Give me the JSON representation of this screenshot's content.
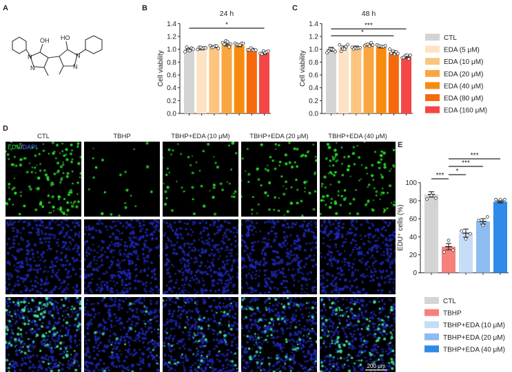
{
  "panel_labels": {
    "a": "A",
    "b": "B",
    "c": "C",
    "d": "D",
    "e": "E"
  },
  "structure": {
    "atom_labels": [
      "OH",
      "HO",
      "N",
      "N",
      "N",
      "N"
    ]
  },
  "viability_legend": [
    {
      "label": "CTL",
      "color": "#d4d4d4"
    },
    {
      "label": "EDA (5 μM)",
      "color": "#fde3c3"
    },
    {
      "label": "EDA (10 μM)",
      "color": "#fcc47e"
    },
    {
      "label": "EDA (20 μM)",
      "color": "#f9a640"
    },
    {
      "label": "EDA (40 μM)",
      "color": "#f78b10"
    },
    {
      "label": "EDA (80 μM)",
      "color": "#f66a0c"
    },
    {
      "label": "EDA (160 μM)",
      "color": "#f44646"
    }
  ],
  "microscopy": {
    "columns": [
      "CTL",
      "TBHP",
      "TBHP+EDA (10 μM)",
      "TBHP+EDA (20 μM)",
      "TBHP+EDA (40 μM)"
    ],
    "row_label_edu": "EDU",
    "row_label_sep": "/",
    "row_label_dapi": "DAPI",
    "scale_bar": "200 μm",
    "edu_density": [
      1.0,
      0.15,
      0.4,
      0.55,
      0.85
    ]
  },
  "edu_legend": [
    {
      "label": "CTL",
      "color": "#d4d4d4"
    },
    {
      "label": "TBHP",
      "color": "#f7807c"
    },
    {
      "label": "TBHP+EDA (10 μM)",
      "color": "#c6ddf7"
    },
    {
      "label": "TBHP+EDA (20 μM)",
      "color": "#8dbcf0"
    },
    {
      "label": "TBHP+EDA (40 μM)",
      "color": "#2f8ae8"
    }
  ],
  "chart_data": [
    {
      "id": "B",
      "type": "bar",
      "title": "24 h",
      "ylabel": "Cell viability",
      "ylim": [
        0,
        1.4
      ],
      "yticks": [
        "0.0",
        "0.2",
        "0.4",
        "0.6",
        "0.8",
        "1.0",
        "1.2",
        "1.4"
      ],
      "categories": [
        "CTL",
        "EDA (5 μM)",
        "EDA (10 μM)",
        "EDA (20 μM)",
        "EDA (40 μM)",
        "EDA (80 μM)",
        "EDA (160 μM)"
      ],
      "values": [
        1.0,
        1.01,
        1.04,
        1.08,
        1.06,
        1.0,
        0.94
      ],
      "sem": [
        0.02,
        0.02,
        0.015,
        0.03,
        0.02,
        0.015,
        0.02
      ],
      "significance": [
        {
          "from": 0,
          "to": 6,
          "label": "*"
        }
      ]
    },
    {
      "id": "C",
      "type": "bar",
      "title": "48 h",
      "ylabel": "Cell viability",
      "ylim": [
        0,
        1.4
      ],
      "yticks": [
        "0.0",
        "0.2",
        "0.4",
        "0.6",
        "0.8",
        "1.0",
        "1.2",
        "1.4"
      ],
      "categories": [
        "CTL",
        "EDA (5 μM)",
        "EDA (10 μM)",
        "EDA (20 μM)",
        "EDA (40 μM)",
        "EDA (80 μM)",
        "EDA (160 μM)"
      ],
      "values": [
        1.0,
        1.02,
        1.03,
        1.07,
        1.04,
        0.95,
        0.88
      ],
      "sem": [
        0.03,
        0.03,
        0.02,
        0.02,
        0.02,
        0.03,
        0.02
      ],
      "significance": [
        {
          "from": 0,
          "to": 6,
          "label": "***"
        },
        {
          "from": 0,
          "to": 5,
          "label": "*"
        }
      ]
    },
    {
      "id": "E",
      "type": "bar",
      "title": "",
      "ylabel": "EDU⁺ cells (%)",
      "ylim": [
        0,
        100
      ],
      "yticks": [
        "0",
        "20",
        "40",
        "60",
        "80",
        "100"
      ],
      "categories": [
        "CTL",
        "TBHP",
        "TBHP+EDA (10 μM)",
        "TBHP+EDA (20 μM)",
        "TBHP+EDA (40 μM)"
      ],
      "values": [
        87,
        29,
        44,
        57,
        79
      ],
      "sem": [
        3,
        3.5,
        4.5,
        3,
        1.5
      ],
      "significance": [
        {
          "from": 0,
          "to": 1,
          "label": "***"
        },
        {
          "from": 1,
          "to": 2,
          "label": "*"
        },
        {
          "from": 1,
          "to": 3,
          "label": "***"
        },
        {
          "from": 1,
          "to": 4,
          "label": "***"
        }
      ]
    }
  ]
}
